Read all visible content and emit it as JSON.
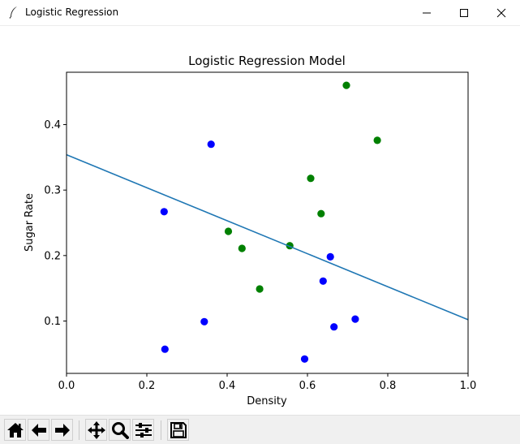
{
  "window": {
    "title": "Logistic Regression"
  },
  "toolbar": {
    "buttons": [
      "home-icon",
      "back-arrow-icon",
      "forward-arrow-icon",
      "pan-icon",
      "zoom-icon",
      "subplots-config-icon",
      "save-icon"
    ]
  },
  "chart_data": {
    "type": "scatter",
    "title": "Logistic Regression Model",
    "xlabel": "Density",
    "ylabel": "Sugar Rate",
    "xlim": [
      0.0,
      1.0
    ],
    "ylim": [
      0.02,
      0.48
    ],
    "x_ticks": [
      "0.0",
      "0.2",
      "0.4",
      "0.6",
      "0.8",
      "1.0"
    ],
    "x_tick_values": [
      0.0,
      0.2,
      0.4,
      0.6,
      0.8,
      1.0
    ],
    "y_ticks": [
      "0.1",
      "0.2",
      "0.3",
      "0.4"
    ],
    "y_tick_values": [
      0.1,
      0.2,
      0.3,
      0.4
    ],
    "grid": false,
    "series": [
      {
        "color": "#008000",
        "points": [
          [
            0.697,
            0.46
          ],
          [
            0.774,
            0.376
          ],
          [
            0.608,
            0.318
          ],
          [
            0.634,
            0.264
          ],
          [
            0.403,
            0.237
          ],
          [
            0.437,
            0.211
          ],
          [
            0.556,
            0.215
          ],
          [
            0.481,
            0.149
          ]
        ]
      },
      {
        "color": "#0000ff",
        "points": [
          [
            0.36,
            0.37
          ],
          [
            0.243,
            0.267
          ],
          [
            0.657,
            0.198
          ],
          [
            0.639,
            0.161
          ],
          [
            0.343,
            0.099
          ],
          [
            0.719,
            0.103
          ],
          [
            0.666,
            0.091
          ],
          [
            0.245,
            0.057
          ],
          [
            0.593,
            0.042
          ]
        ]
      }
    ],
    "line": {
      "color": "#1f77b4",
      "points": [
        [
          0.0,
          0.354
        ],
        [
          1.0,
          0.102
        ]
      ]
    }
  }
}
